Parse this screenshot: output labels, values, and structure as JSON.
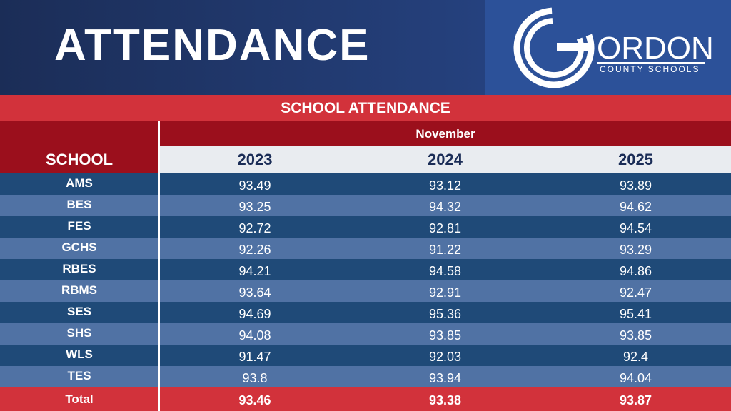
{
  "header": {
    "title": "ATTENDANCE",
    "logo": {
      "wordmark": "ORDON",
      "tagline": "COUNTY SCHOOLS"
    }
  },
  "table": {
    "caption": "SCHOOL ATTENDANCE",
    "group": "November",
    "first_header": "SCHOOL",
    "columns": [
      "2023",
      "2024",
      "2025"
    ],
    "rows": [
      [
        "AMS",
        93.49,
        93.12,
        93.89
      ],
      [
        "BES",
        93.25,
        94.32,
        94.62
      ],
      [
        "FES",
        92.72,
        92.81,
        94.54
      ],
      [
        "GCHS",
        92.26,
        91.22,
        93.29
      ],
      [
        "RBES",
        94.21,
        94.58,
        94.86
      ],
      [
        "RBMS",
        93.64,
        92.91,
        92.47
      ],
      [
        "SES",
        94.69,
        95.36,
        95.41
      ],
      [
        "SHS",
        94.08,
        93.85,
        93.85
      ],
      [
        "WLS",
        91.47,
        92.03,
        92.4
      ],
      [
        "TES",
        93.8,
        93.94,
        94.04
      ]
    ],
    "total": [
      "Total",
      93.46,
      93.38,
      93.87
    ]
  }
}
